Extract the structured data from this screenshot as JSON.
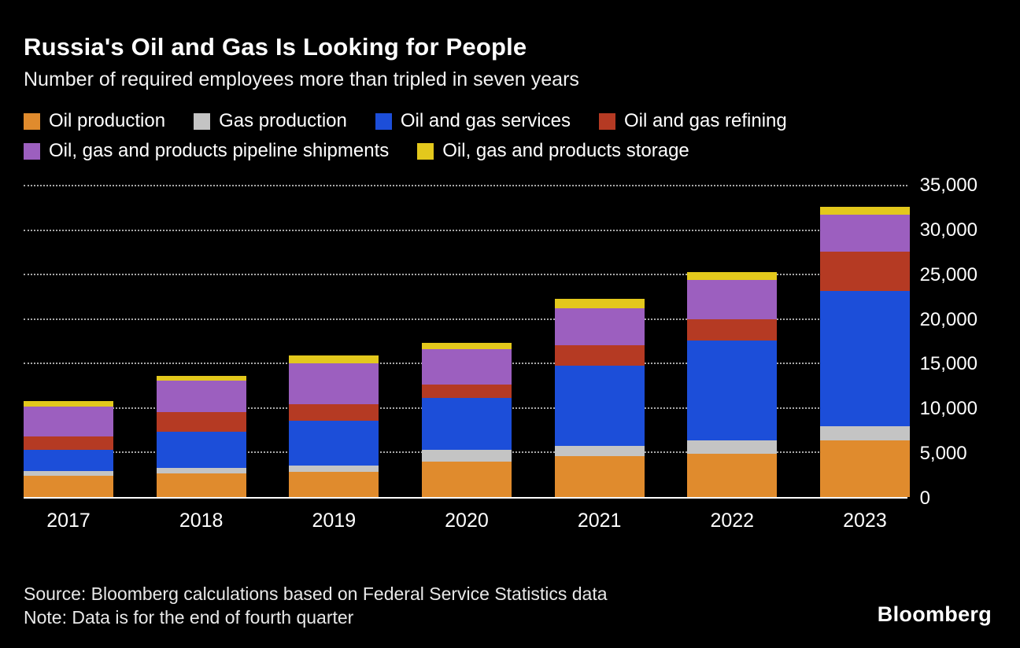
{
  "header": {
    "title": "Russia's Oil and Gas Is Looking for People",
    "subtitle": "Number of required employees more than tripled in seven years"
  },
  "chart_data": {
    "type": "bar",
    "stacked": true,
    "title": "Russia's Oil and Gas Is Looking for People",
    "subtitle": "Number of required employees more than tripled in seven years",
    "categories": [
      "2017",
      "2018",
      "2019",
      "2020",
      "2021",
      "2022",
      "2023"
    ],
    "series": [
      {
        "name": "Oil production",
        "color": "#E08B2D",
        "values": [
          2400,
          2650,
          2800,
          4000,
          4600,
          4900,
          6400
        ]
      },
      {
        "name": "Gas production",
        "color": "#C4C4C4",
        "values": [
          500,
          600,
          700,
          1300,
          1150,
          1500,
          1600
        ]
      },
      {
        "name": "Oil and gas services",
        "color": "#1C4ED9",
        "values": [
          2400,
          4100,
          5100,
          5800,
          9000,
          11200,
          15200
        ]
      },
      {
        "name": "Oil and gas refining",
        "color": "#B53A23",
        "values": [
          1500,
          2200,
          1800,
          1500,
          2300,
          2400,
          4400
        ]
      },
      {
        "name": "Oil, gas and products pipeline shipments",
        "color": "#9C5FBF",
        "values": [
          3400,
          3500,
          4600,
          4000,
          4200,
          4400,
          4100
        ]
      },
      {
        "name": "Oil, gas and products storage",
        "color": "#E3C81C",
        "values": [
          600,
          600,
          900,
          700,
          1050,
          900,
          900
        ]
      }
    ],
    "ylim": [
      0,
      35000
    ],
    "yticks": [
      0,
      5000,
      10000,
      15000,
      20000,
      25000,
      30000,
      35000
    ],
    "ytick_labels": [
      "0",
      "5,000",
      "10,000",
      "15,000",
      "20,000",
      "25,000",
      "30,000",
      "35,000"
    ],
    "xlabel": "",
    "ylabel": "",
    "legend_position": "top",
    "grid": "horizontal dotted",
    "axis_label_side": "right"
  },
  "footer": {
    "source": "Source: Bloomberg calculations based on Federal Service Statistics data",
    "note": "Note: Data is for the end of fourth quarter",
    "brand": "Bloomberg"
  }
}
